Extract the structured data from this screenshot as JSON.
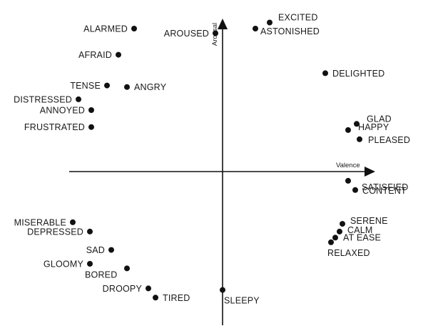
{
  "chart_data": {
    "type": "scatter",
    "title": "",
    "xlabel": "Valence",
    "ylabel": "Arousal",
    "xlim": [
      -1,
      1
    ],
    "ylim": [
      -1,
      1
    ],
    "grid": false,
    "points": [
      {
        "label": "ALARMED",
        "x": -0.62,
        "y": 0.93
      },
      {
        "label": "AROUSED",
        "x": -0.05,
        "y": 0.9
      },
      {
        "label": "EXCITED",
        "x": 0.33,
        "y": 0.97
      },
      {
        "label": "ASTONISHED",
        "x": 0.23,
        "y": 0.93
      },
      {
        "label": "AFRAID",
        "x": -0.73,
        "y": 0.76
      },
      {
        "label": "DELIGHTED",
        "x": 0.72,
        "y": 0.64
      },
      {
        "label": "TENSE",
        "x": -0.81,
        "y": 0.56
      },
      {
        "label": "ANGRY",
        "x": -0.67,
        "y": 0.55
      },
      {
        "label": "DISTRESSED",
        "x": -1.01,
        "y": 0.47
      },
      {
        "label": "ANNOYED",
        "x": -0.92,
        "y": 0.4
      },
      {
        "label": "FRUSTRATED",
        "x": -0.92,
        "y": 0.29
      },
      {
        "label": "GLAD",
        "x": 0.94,
        "y": 0.31
      },
      {
        "label": "HAPPY",
        "x": 0.88,
        "y": 0.27
      },
      {
        "label": "PLEASED",
        "x": 0.96,
        "y": 0.21
      },
      {
        "label": "SATISFIED",
        "x": 0.88,
        "y": -0.06
      },
      {
        "label": "CONTENT",
        "x": 0.93,
        "y": -0.12
      },
      {
        "label": "SERENE",
        "x": 0.84,
        "y": -0.34
      },
      {
        "label": "CALM",
        "x": 0.82,
        "y": -0.39
      },
      {
        "label": "AT EASE",
        "x": 0.79,
        "y": -0.43
      },
      {
        "label": "RELAXED",
        "x": 0.76,
        "y": -0.46
      },
      {
        "label": "MISERABLE",
        "x": -1.05,
        "y": -0.33
      },
      {
        "label": "DEPRESSED",
        "x": -0.93,
        "y": -0.39
      },
      {
        "label": "SAD",
        "x": -0.78,
        "y": -0.51
      },
      {
        "label": "GLOOMY",
        "x": -0.93,
        "y": -0.6
      },
      {
        "label": "BORED",
        "x": -0.67,
        "y": -0.63
      },
      {
        "label": "DROOPY",
        "x": -0.52,
        "y": -0.76
      },
      {
        "label": "TIRED",
        "x": -0.47,
        "y": -0.82
      },
      {
        "label": "SLEEPY",
        "x": 0.0,
        "y": -0.77
      }
    ]
  }
}
